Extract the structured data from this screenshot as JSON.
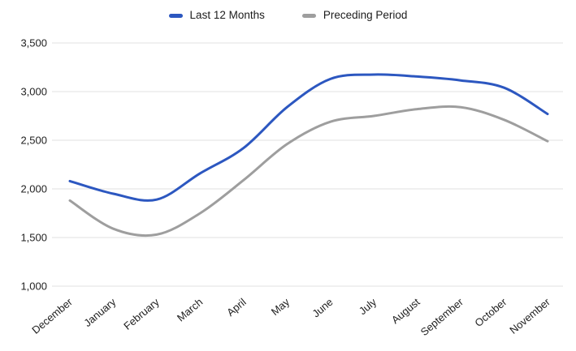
{
  "chart_data": {
    "type": "line",
    "smooth": true,
    "grid": true,
    "legend_position": "top",
    "categories": [
      "December",
      "January",
      "February",
      "March",
      "April",
      "May",
      "June",
      "July",
      "August",
      "September",
      "October",
      "November"
    ],
    "series": [
      {
        "name": "Last 12 Months",
        "color": "#2c57c0",
        "values": [
          2080,
          1950,
          1890,
          2160,
          2420,
          2840,
          3130,
          3175,
          3155,
          3115,
          3040,
          2770
        ]
      },
      {
        "name": "Preceding Period",
        "color": "#9e9e9e",
        "values": [
          1880,
          1590,
          1530,
          1750,
          2090,
          2460,
          2690,
          2750,
          2820,
          2840,
          2710,
          2490
        ]
      }
    ],
    "ylim": [
      1000,
      3500
    ],
    "ytick_step": 500,
    "ytick_labels_top_to_bottom": [
      "3,500",
      "3,000",
      "2,500",
      "2,000",
      "1,500",
      "1,000"
    ]
  },
  "styles": {
    "background": "#ffffff",
    "gridline_color": "#e2e2e2",
    "axis_text_color": "#1f1f1f"
  }
}
